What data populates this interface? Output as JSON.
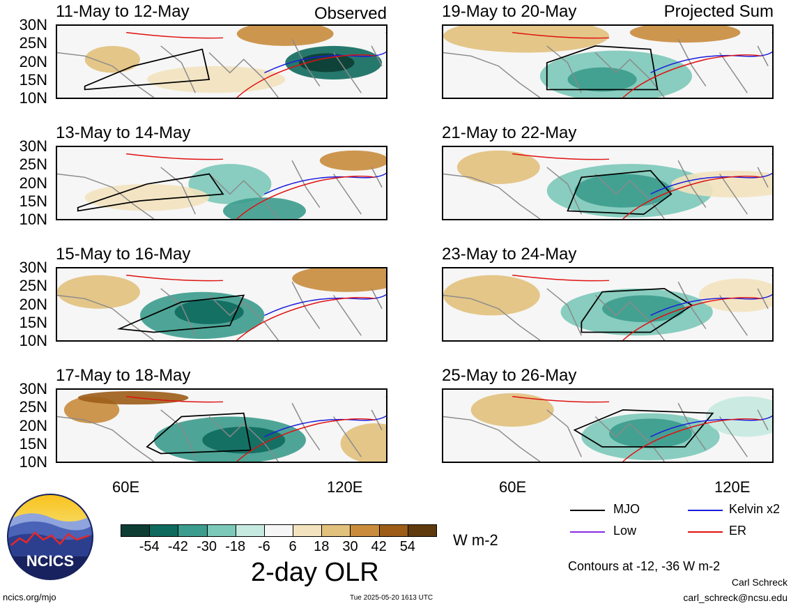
{
  "panels_left": [
    {
      "title": "11-May to 12-May",
      "tag": "Observed"
    },
    {
      "title": "13-May to 14-May",
      "tag": ""
    },
    {
      "title": "15-May to 16-May",
      "tag": ""
    },
    {
      "title": "17-May to 18-May",
      "tag": ""
    }
  ],
  "panels_right": [
    {
      "title": "19-May to 20-May",
      "tag": "Projected Sum"
    },
    {
      "title": "21-May to 22-May",
      "tag": ""
    },
    {
      "title": "23-May to 24-May",
      "tag": ""
    },
    {
      "title": "25-May to 26-May",
      "tag": ""
    }
  ],
  "lat_labels": [
    "30N",
    "25N",
    "20N",
    "15N",
    "10N"
  ],
  "lon_labels": [
    "60E",
    "120E"
  ],
  "colorbar": {
    "colors": [
      "#0d3d33",
      "#0f6a5e",
      "#3c9c8d",
      "#7cc9b9",
      "#c7eae0",
      "#f6f6f6",
      "#f3e3bf",
      "#e2c17d",
      "#c98c3d",
      "#9c5d18",
      "#5e3a0c"
    ],
    "labels": [
      "-54",
      "-42",
      "-30",
      "-18",
      "-6",
      "6",
      "18",
      "30",
      "42",
      "54"
    ],
    "units": "W m-2",
    "title": "2-day OLR"
  },
  "legend": {
    "items": [
      {
        "label": "MJO",
        "color": "#000000"
      },
      {
        "label": "Kelvin x2",
        "color": "#1a1adb"
      },
      {
        "label": "Low",
        "color": "#8a2be2"
      },
      {
        "label": "ER",
        "color": "#e01010"
      }
    ],
    "contours_note": "Contours at -12, -36 W m-2"
  },
  "footer": {
    "logo_text": "NCICS",
    "url": "ncics.org/mjo",
    "timestamp": "Tue 2025-05-20 1613 UTC",
    "author": "Carl Schreck",
    "email": "carl_schreck@ncsu.edu"
  }
}
